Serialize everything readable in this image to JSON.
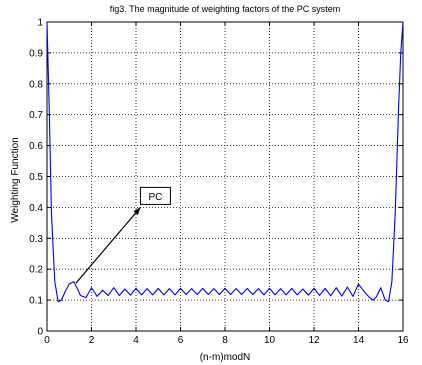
{
  "chart_data": {
    "type": "line",
    "title": "fig3. The magnitude of weighting factors of the PC system",
    "xlabel": "(n-m)modN",
    "ylabel": "Weighting Function",
    "xlim": [
      0,
      16
    ],
    "ylim": [
      0,
      1
    ],
    "grid": true,
    "x_ticks": [
      0,
      2,
      4,
      6,
      8,
      10,
      12,
      14,
      16
    ],
    "x_tick_labels": [
      "0",
      "2",
      "4",
      "6",
      "8",
      "10",
      "12",
      "14",
      "16"
    ],
    "y_ticks": [
      0,
      0.1,
      0.2,
      0.3,
      0.4,
      0.5,
      0.6,
      0.7,
      0.8,
      0.9,
      1
    ],
    "y_tick_labels": [
      "0",
      "0.1",
      "0.2",
      "0.3",
      "0.4",
      "0.5",
      "0.6",
      "0.7",
      "0.8",
      "0.9",
      "1"
    ],
    "line_color": "#0000ff",
    "series": [
      {
        "name": "PC",
        "x": [
          0,
          0.1,
          0.2,
          0.35,
          0.5,
          0.65,
          0.8,
          1.0,
          1.2,
          1.35,
          1.5,
          1.75,
          2.0,
          2.25,
          2.5,
          2.75,
          3.0,
          3.25,
          3.5,
          3.75,
          4.0,
          4.25,
          4.5,
          4.75,
          5.0,
          5.25,
          5.5,
          5.75,
          6.0,
          6.25,
          6.5,
          6.75,
          7.0,
          7.25,
          7.5,
          7.75,
          8.0,
          8.25,
          8.5,
          8.75,
          9.0,
          9.25,
          9.5,
          9.75,
          10.0,
          10.25,
          10.5,
          10.75,
          11.0,
          11.25,
          11.5,
          11.75,
          12.0,
          12.25,
          12.5,
          12.75,
          13.0,
          13.25,
          13.5,
          13.75,
          14.0,
          14.25,
          14.5,
          14.65,
          14.8,
          15.0,
          15.2,
          15.35,
          15.5,
          15.65,
          15.8,
          15.9,
          16
        ],
        "y": [
          1.0,
          0.72,
          0.38,
          0.16,
          0.095,
          0.1,
          0.125,
          0.152,
          0.16,
          0.14,
          0.115,
          0.108,
          0.14,
          0.112,
          0.132,
          0.115,
          0.14,
          0.115,
          0.136,
          0.116,
          0.138,
          0.117,
          0.137,
          0.117,
          0.138,
          0.117,
          0.137,
          0.117,
          0.138,
          0.118,
          0.137,
          0.118,
          0.138,
          0.118,
          0.137,
          0.118,
          0.138,
          0.118,
          0.137,
          0.118,
          0.138,
          0.118,
          0.137,
          0.117,
          0.138,
          0.117,
          0.137,
          0.117,
          0.138,
          0.117,
          0.136,
          0.116,
          0.138,
          0.115,
          0.138,
          0.114,
          0.14,
          0.113,
          0.142,
          0.112,
          0.152,
          0.128,
          0.108,
          0.1,
          0.11,
          0.14,
          0.1,
          0.095,
          0.16,
          0.38,
          0.72,
          0.9,
          1.0
        ]
      }
    ],
    "annotation": {
      "text": "PC",
      "arrow_from": [
        4.2,
        0.4
      ],
      "arrow_to": [
        1.3,
        0.155
      ]
    }
  }
}
